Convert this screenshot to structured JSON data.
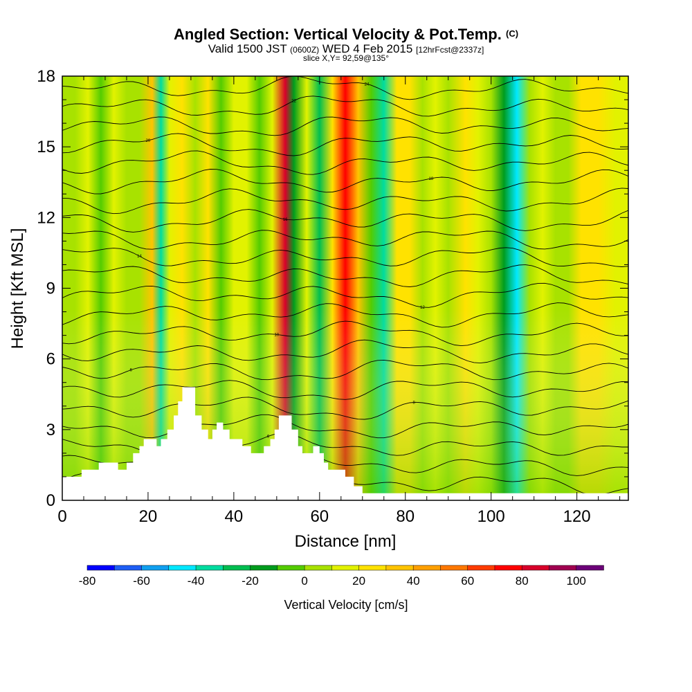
{
  "header": {
    "title": "Angled Section: Vertical Velocity & Pot.Temp.",
    "title_tag": "(C)",
    "subtitle_main": "Valid 1500 JST",
    "subtitle_utc": "(0600Z)",
    "subtitle_date": "WED 4 Feb 2015",
    "subtitle_fcst": "[12hrFcst@2337z]",
    "slice": "slice X,Y= 92,59@135°"
  },
  "chart_data": {
    "type": "heatmap",
    "title": "Angled Section: Vertical Velocity & Pot.Temp.",
    "xlabel": "Distance [nm]",
    "ylabel": "Height [Kft MSL]",
    "xlim": [
      0,
      132
    ],
    "ylim": [
      0,
      18
    ],
    "x_ticks": [
      0,
      20,
      40,
      60,
      80,
      100,
      120
    ],
    "y_ticks": [
      0,
      3,
      6,
      9,
      12,
      15,
      18
    ],
    "colorbar": {
      "label": "Vertical Velocity [cm/s]",
      "range": [
        -80,
        110
      ],
      "step": 10,
      "tick_values": [
        -80,
        -60,
        -40,
        -20,
        0,
        20,
        40,
        60,
        80,
        100
      ],
      "colors": [
        "#0000ff",
        "#1e5ef5",
        "#10a0f0",
        "#00e8ff",
        "#00dca0",
        "#00be50",
        "#009c1e",
        "#54cc00",
        "#a8e200",
        "#e2f200",
        "#ffe200",
        "#ffc400",
        "#ffa000",
        "#ff7800",
        "#ff3c00",
        "#ff0000",
        "#d8002a",
        "#a00050",
        "#6c0078"
      ]
    },
    "columns": [
      {
        "x": 0,
        "w": 0
      },
      {
        "x": 3,
        "w": 5
      },
      {
        "x": 6,
        "w": 12
      },
      {
        "x": 9,
        "w": -6
      },
      {
        "x": 12,
        "w": 14
      },
      {
        "x": 15,
        "w": 6
      },
      {
        "x": 18,
        "w": 2
      },
      {
        "x": 21,
        "w": 34
      },
      {
        "x": 23,
        "w": -34
      },
      {
        "x": 25,
        "w": 10
      },
      {
        "x": 28,
        "w": 24
      },
      {
        "x": 31,
        "w": 4
      },
      {
        "x": 34,
        "w": 26
      },
      {
        "x": 37,
        "w": -8
      },
      {
        "x": 40,
        "w": 12
      },
      {
        "x": 43,
        "w": 18
      },
      {
        "x": 46,
        "w": -6
      },
      {
        "x": 49,
        "w": 14
      },
      {
        "x": 52,
        "w": 85
      },
      {
        "x": 54,
        "w": -16
      },
      {
        "x": 57,
        "w": 10
      },
      {
        "x": 60,
        "w": -24
      },
      {
        "x": 63,
        "w": 26
      },
      {
        "x": 66,
        "w": 75
      },
      {
        "x": 69,
        "w": 30
      },
      {
        "x": 72,
        "w": -10
      },
      {
        "x": 75,
        "w": -38
      },
      {
        "x": 78,
        "w": 20
      },
      {
        "x": 81,
        "w": 26
      },
      {
        "x": 84,
        "w": 6
      },
      {
        "x": 87,
        "w": 14
      },
      {
        "x": 90,
        "w": 4
      },
      {
        "x": 94,
        "w": 24
      },
      {
        "x": 97,
        "w": 12
      },
      {
        "x": 100,
        "w": 8
      },
      {
        "x": 103,
        "w": -12
      },
      {
        "x": 106,
        "w": -42
      },
      {
        "x": 109,
        "w": 4
      },
      {
        "x": 112,
        "w": 12
      },
      {
        "x": 115,
        "w": 0
      },
      {
        "x": 118,
        "w": 4
      },
      {
        "x": 121,
        "w": 22
      },
      {
        "x": 125,
        "w": 28
      },
      {
        "x": 129,
        "w": 14
      },
      {
        "x": 132,
        "w": 10
      }
    ],
    "terrain": [
      [
        0,
        1.0
      ],
      [
        4.5,
        1.0
      ],
      [
        4.5,
        1.3
      ],
      [
        8.5,
        1.3
      ],
      [
        8.5,
        1.6
      ],
      [
        13,
        1.6
      ],
      [
        13,
        1.3
      ],
      [
        15,
        1.3
      ],
      [
        15,
        1.6
      ],
      [
        16.5,
        1.6
      ],
      [
        16.5,
        2.0
      ],
      [
        18,
        2.0
      ],
      [
        18,
        2.3
      ],
      [
        19,
        2.3
      ],
      [
        19,
        2.6
      ],
      [
        22,
        2.6
      ],
      [
        22,
        2.3
      ],
      [
        23,
        2.3
      ],
      [
        23,
        2.6
      ],
      [
        24.5,
        2.6
      ],
      [
        24.5,
        3.0
      ],
      [
        26,
        3.0
      ],
      [
        26,
        3.6
      ],
      [
        27,
        3.6
      ],
      [
        27,
        4.2
      ],
      [
        28,
        4.2
      ],
      [
        28,
        4.8
      ],
      [
        31,
        4.8
      ],
      [
        31,
        3.6
      ],
      [
        32.5,
        3.6
      ],
      [
        32.5,
        3.0
      ],
      [
        34,
        3.0
      ],
      [
        34,
        2.6
      ],
      [
        35,
        2.6
      ],
      [
        35,
        3.0
      ],
      [
        36,
        3.0
      ],
      [
        36,
        3.3
      ],
      [
        37.5,
        3.3
      ],
      [
        37.5,
        3.0
      ],
      [
        39,
        3.0
      ],
      [
        39,
        2.6
      ],
      [
        42,
        2.6
      ],
      [
        42,
        2.3
      ],
      [
        44,
        2.3
      ],
      [
        44,
        2.0
      ],
      [
        47,
        2.0
      ],
      [
        47,
        2.3
      ],
      [
        48.5,
        2.3
      ],
      [
        48.5,
        2.6
      ],
      [
        49.5,
        2.6
      ],
      [
        49.5,
        3.0
      ],
      [
        50.5,
        3.0
      ],
      [
        50.5,
        3.6
      ],
      [
        53.5,
        3.6
      ],
      [
        53.5,
        3.0
      ],
      [
        55,
        3.0
      ],
      [
        55,
        2.3
      ],
      [
        56,
        2.3
      ],
      [
        56,
        2.0
      ],
      [
        58.5,
        2.0
      ],
      [
        58.5,
        2.3
      ],
      [
        60,
        2.3
      ],
      [
        60,
        2.0
      ],
      [
        61,
        2.0
      ],
      [
        61,
        1.6
      ],
      [
        62,
        1.6
      ],
      [
        62,
        1.3
      ],
      [
        66,
        1.3
      ],
      [
        66,
        1.0
      ],
      [
        68,
        1.0
      ],
      [
        68,
        0.6
      ],
      [
        70,
        0.6
      ],
      [
        70,
        0.3
      ],
      [
        132,
        0.3
      ]
    ],
    "theta_contours": [
      {
        "base": 0.7,
        "label": ""
      },
      {
        "base": 1.5,
        "label": ""
      },
      {
        "base": 2.3,
        "label": "6"
      },
      {
        "base": 3.1,
        "label": ""
      },
      {
        "base": 3.9,
        "label": "8"
      },
      {
        "base": 4.7,
        "label": ""
      },
      {
        "base": 5.5,
        "label": "6"
      },
      {
        "base": 6.3,
        "label": ""
      },
      {
        "base": 7.1,
        "label": "10"
      },
      {
        "base": 7.9,
        "label": ""
      },
      {
        "base": 8.7,
        "label": "12"
      },
      {
        "base": 9.5,
        "label": ""
      },
      {
        "base": 10.3,
        "label": "14"
      },
      {
        "base": 11.1,
        "label": ""
      },
      {
        "base": 11.9,
        "label": "16"
      },
      {
        "base": 12.7,
        "label": ""
      },
      {
        "base": 13.5,
        "label": "18"
      },
      {
        "base": 14.3,
        "label": ""
      },
      {
        "base": 15.1,
        "label": "20"
      },
      {
        "base": 15.9,
        "label": ""
      },
      {
        "base": 16.7,
        "label": "22"
      },
      {
        "base": 17.5,
        "label": "24"
      }
    ]
  }
}
